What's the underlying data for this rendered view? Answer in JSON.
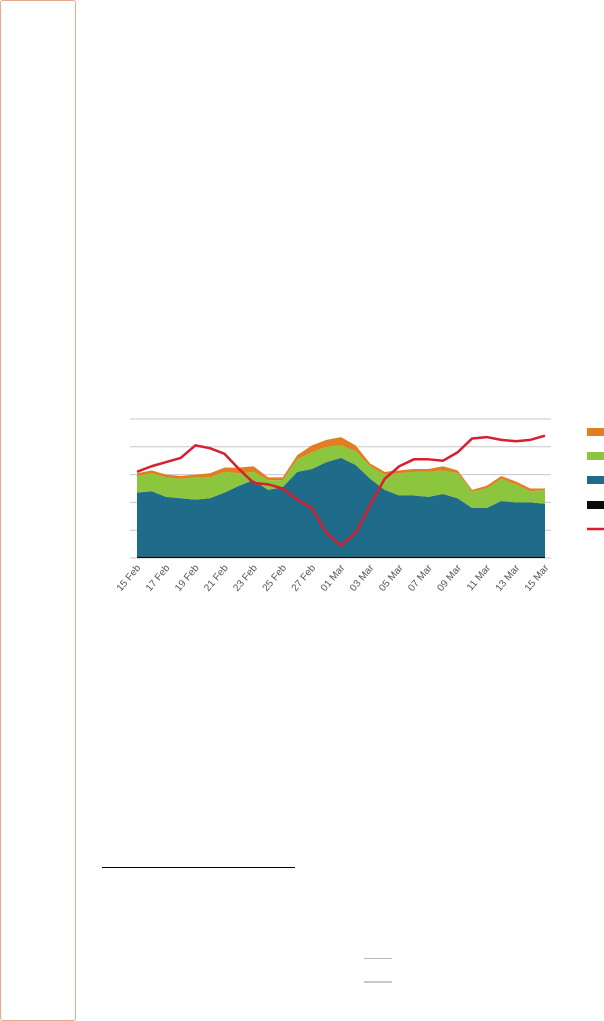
{
  "chart_data": {
    "type": "area",
    "stacked": true,
    "categories": [
      "15 Feb",
      "16 Feb",
      "17 Feb",
      "18 Feb",
      "19 Feb",
      "20 Feb",
      "21 Feb",
      "22 Feb",
      "23 Feb",
      "24 Feb",
      "25 Feb",
      "26 Feb",
      "27 Feb",
      "28 Feb",
      "01 Mar",
      "02 Mar",
      "03 Mar",
      "04 Mar",
      "05 Mar",
      "06 Mar",
      "07 Mar",
      "08 Mar",
      "09 Mar",
      "10 Mar",
      "11 Mar",
      "12 Mar",
      "13 Mar",
      "14 Mar",
      "15 Mar"
    ],
    "tick_labels": [
      "15 Feb",
      "17 Feb",
      "19 Feb",
      "21 Feb",
      "23 Feb",
      "25 Feb",
      "27 Feb",
      "01 Mar",
      "03 Mar",
      "05 Mar",
      "07 Mar",
      "09 Mar",
      "11 Mar",
      "13 Mar",
      "15 Mar"
    ],
    "ylim": [
      0,
      5
    ],
    "grid": true,
    "legend_position": "right",
    "series": [
      {
        "kind": "area",
        "color": "#0a0a0a",
        "values": [
          0.05,
          0.05,
          0.05,
          0.05,
          0.05,
          0.05,
          0.05,
          0.05,
          0.05,
          0.05,
          0.05,
          0.05,
          0.05,
          0.05,
          0.05,
          0.05,
          0.05,
          0.05,
          0.05,
          0.05,
          0.05,
          0.05,
          0.05,
          0.05,
          0.05,
          0.05,
          0.05,
          0.05,
          0.05
        ]
      },
      {
        "kind": "area",
        "color": "#1f6b8a",
        "values": [
          2.3,
          2.35,
          2.15,
          2.1,
          2.05,
          2.1,
          2.3,
          2.55,
          2.75,
          2.4,
          2.5,
          3.05,
          3.15,
          3.4,
          3.55,
          3.3,
          2.8,
          2.4,
          2.2,
          2.2,
          2.15,
          2.25,
          2.1,
          1.75,
          1.75,
          2.0,
          1.95,
          1.95,
          1.9
        ]
      },
      {
        "kind": "area",
        "color": "#8cc63e",
        "values": [
          0.6,
          0.65,
          0.7,
          0.7,
          0.8,
          0.75,
          0.75,
          0.45,
          0.3,
          0.35,
          0.25,
          0.45,
          0.6,
          0.55,
          0.45,
          0.5,
          0.45,
          0.55,
          0.8,
          0.85,
          0.9,
          0.85,
          0.9,
          0.6,
          0.7,
          0.8,
          0.65,
          0.4,
          0.5
        ]
      },
      {
        "kind": "area",
        "color": "#e07f1f",
        "values": [
          0.1,
          0.1,
          0.1,
          0.1,
          0.1,
          0.15,
          0.15,
          0.2,
          0.2,
          0.1,
          0.1,
          0.15,
          0.25,
          0.25,
          0.3,
          0.2,
          0.1,
          0.1,
          0.1,
          0.1,
          0.1,
          0.15,
          0.1,
          0.05,
          0.1,
          0.1,
          0.1,
          0.1,
          0.05
        ]
      },
      {
        "kind": "line",
        "color": "#d81e2f",
        "values": [
          3.1,
          3.3,
          3.45,
          3.6,
          4.05,
          3.95,
          3.75,
          3.2,
          2.7,
          2.65,
          2.5,
          2.1,
          1.8,
          0.9,
          0.45,
          0.9,
          1.9,
          2.85,
          3.3,
          3.55,
          3.55,
          3.5,
          3.8,
          4.3,
          4.35,
          4.25,
          4.2,
          4.25,
          4.4
        ]
      }
    ]
  },
  "legend_items": [
    {
      "swatch": "#e07f1f"
    },
    {
      "swatch": "#8cc63e"
    },
    {
      "swatch": "#1f6b8a"
    },
    {
      "swatch": "#0a0a0a"
    },
    {
      "swatch": "#d81e2f"
    }
  ]
}
